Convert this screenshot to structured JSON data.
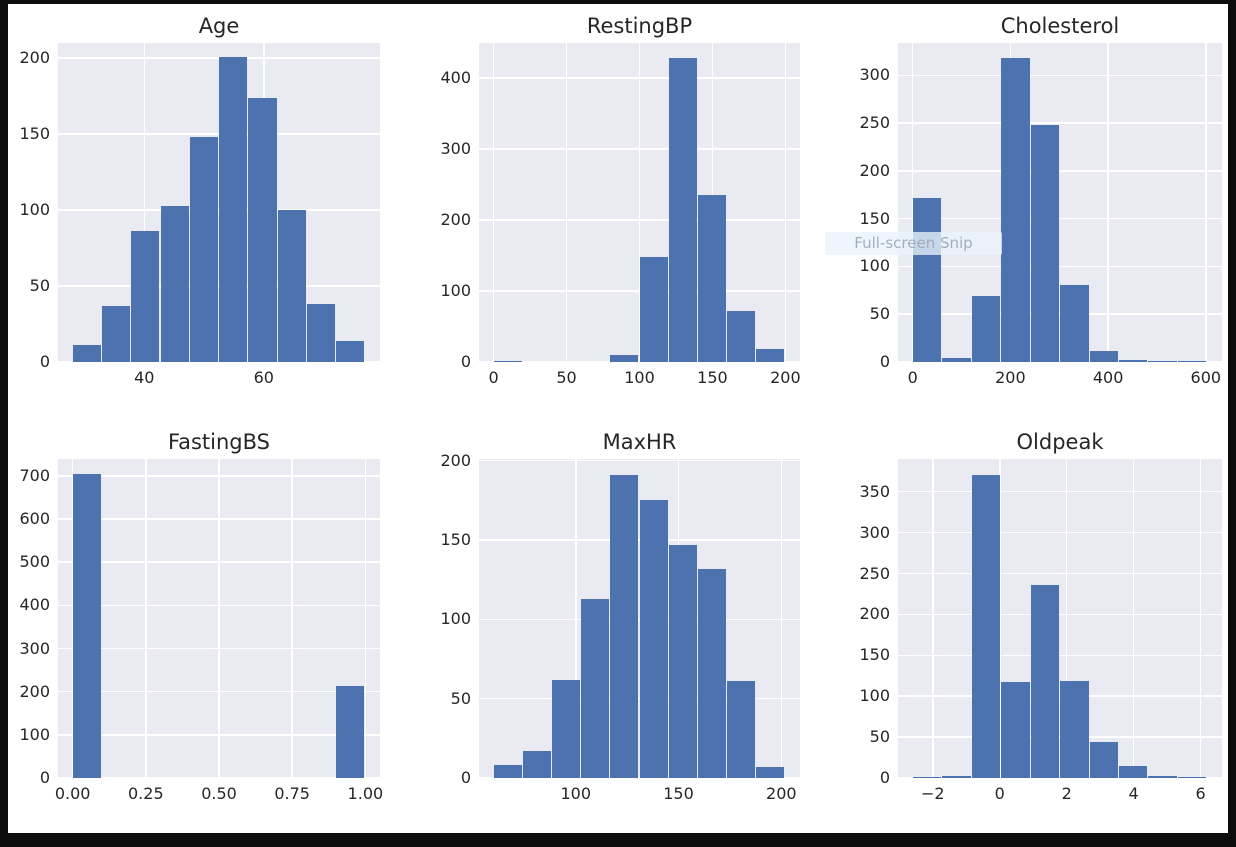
{
  "ui": {
    "tooltip": {
      "text": "Full-screen Snip"
    }
  },
  "style": {
    "bar_color": "#4c72b0",
    "plot_bg": "#eaeaf2",
    "grid_color": "#ffffff",
    "text_color": "#262626",
    "page_bg": "#ffffff",
    "frame_color": "#0d0d0d"
  },
  "chart_data": [
    {
      "type": "bar",
      "subtype": "histogram",
      "title": "Age",
      "xlabel": "",
      "ylabel": "",
      "grid": true,
      "bin_start": 28,
      "bin_width": 4.9,
      "values": [
        11,
        37,
        86,
        103,
        148,
        201,
        174,
        100,
        38,
        14
      ],
      "xlim": [
        25.55,
        79.45
      ],
      "ylim": [
        0,
        210
      ],
      "xtick_vals": [
        40,
        60
      ],
      "xtick_labels": [
        "40",
        "60"
      ],
      "ytick_vals": [
        0,
        50,
        100,
        150,
        200
      ],
      "ytick_labels": [
        "0",
        "50",
        "100",
        "150",
        "200"
      ]
    },
    {
      "type": "bar",
      "subtype": "histogram",
      "title": "RestingBP",
      "xlabel": "",
      "ylabel": "",
      "grid": true,
      "bin_start": 0,
      "bin_width": 20,
      "values": [
        1,
        0,
        0,
        0,
        10,
        148,
        428,
        235,
        72,
        19
      ],
      "xlim": [
        -10,
        210
      ],
      "ylim": [
        0,
        449
      ],
      "xtick_vals": [
        0,
        50,
        100,
        150,
        200
      ],
      "xtick_labels": [
        "0",
        "50",
        "100",
        "150",
        "200"
      ],
      "ytick_vals": [
        0,
        100,
        200,
        300,
        400
      ],
      "ytick_labels": [
        "0",
        "100",
        "200",
        "300",
        "400"
      ]
    },
    {
      "type": "bar",
      "subtype": "histogram",
      "title": "Cholesterol",
      "xlabel": "",
      "ylabel": "",
      "grid": true,
      "bin_start": 0,
      "bin_width": 60.3,
      "values": [
        172,
        4,
        69,
        318,
        248,
        81,
        12,
        2,
        1,
        1
      ],
      "xlim": [
        -30.15,
        633.15
      ],
      "ylim": [
        0,
        334
      ],
      "xtick_vals": [
        0,
        200,
        400,
        600
      ],
      "xtick_labels": [
        "0",
        "200",
        "400",
        "600"
      ],
      "ytick_vals": [
        0,
        50,
        100,
        150,
        200,
        250,
        300
      ],
      "ytick_labels": [
        "0",
        "50",
        "100",
        "150",
        "200",
        "250",
        "300"
      ]
    },
    {
      "type": "bar",
      "subtype": "histogram",
      "title": "FastingBS",
      "xlabel": "",
      "ylabel": "",
      "grid": true,
      "bin_start": 0,
      "bin_width": 0.1,
      "values": [
        704,
        0,
        0,
        0,
        0,
        0,
        0,
        0,
        0,
        214
      ],
      "xlim": [
        -0.05,
        1.05
      ],
      "ylim": [
        0,
        739
      ],
      "xtick_vals": [
        0,
        0.25,
        0.5,
        0.75,
        1
      ],
      "xtick_labels": [
        "0.00",
        "0.25",
        "0.50",
        "0.75",
        "1.00"
      ],
      "ytick_vals": [
        0,
        100,
        200,
        300,
        400,
        500,
        600,
        700
      ],
      "ytick_labels": [
        "0",
        "100",
        "200",
        "300",
        "400",
        "500",
        "600",
        "700"
      ]
    },
    {
      "type": "bar",
      "subtype": "histogram",
      "title": "MaxHR",
      "xlabel": "",
      "ylabel": "",
      "grid": true,
      "bin_start": 60,
      "bin_width": 14.2,
      "values": [
        8,
        17,
        62,
        113,
        191,
        175,
        147,
        132,
        61,
        7
      ],
      "xlim": [
        52.9,
        209.1
      ],
      "ylim": [
        0,
        201
      ],
      "xtick_vals": [
        100,
        150,
        200
      ],
      "xtick_labels": [
        "100",
        "150",
        "200"
      ],
      "ytick_vals": [
        0,
        50,
        100,
        150,
        200
      ],
      "ytick_labels": [
        "0",
        "50",
        "100",
        "150",
        "200"
      ]
    },
    {
      "type": "bar",
      "subtype": "histogram",
      "title": "Oldpeak",
      "xlabel": "",
      "ylabel": "",
      "grid": true,
      "bin_start": -2.6,
      "bin_width": 0.88,
      "values": [
        1,
        3,
        371,
        117,
        236,
        119,
        44,
        15,
        2,
        1
      ],
      "xlim": [
        -3.04,
        6.64
      ],
      "ylim": [
        0,
        390
      ],
      "xtick_vals": [
        -2,
        0,
        2,
        4,
        6
      ],
      "xtick_labels": [
        "−2",
        "0",
        "2",
        "4",
        "6"
      ],
      "ytick_vals": [
        0,
        50,
        100,
        150,
        200,
        250,
        300,
        350
      ],
      "ytick_labels": [
        "0",
        "50",
        "100",
        "150",
        "200",
        "250",
        "300",
        "350"
      ]
    }
  ]
}
